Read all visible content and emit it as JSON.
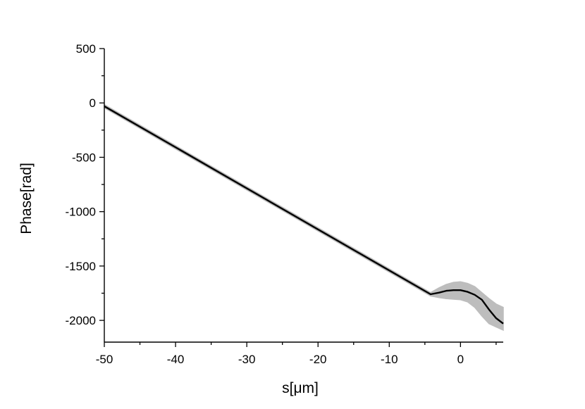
{
  "chart_data": {
    "type": "line",
    "title": "",
    "xlabel": "s[μm]",
    "ylabel": "Phase[rad]",
    "xlim": [
      -50,
      6
    ],
    "ylim": [
      -2200,
      500
    ],
    "x_ticks": [
      -50,
      -40,
      -30,
      -20,
      -10,
      0
    ],
    "x_tick_labels": [
      "-50",
      "-40",
      "-30",
      "-20",
      "-10",
      "0"
    ],
    "y_ticks": [
      500,
      0,
      -500,
      -1000,
      -1500,
      -2000
    ],
    "y_tick_labels": [
      "500",
      "0",
      "-500",
      "-1000",
      "-1500",
      "-2000"
    ],
    "grid": false,
    "legend": "none",
    "series": [
      {
        "role": "mean",
        "color": "#000000",
        "points": [
          [
            -50,
            -30
          ],
          [
            -4.2,
            -1760
          ],
          [
            -3,
            -1745
          ],
          [
            -2,
            -1728
          ],
          [
            -1,
            -1722
          ],
          [
            0,
            -1722
          ],
          [
            1,
            -1738
          ],
          [
            2,
            -1765
          ],
          [
            3,
            -1810
          ],
          [
            4,
            -1900
          ],
          [
            5,
            -1980
          ],
          [
            6,
            -2030
          ]
        ]
      },
      {
        "role": "spread-band",
        "color": "#bdbdbd",
        "upper": [
          [
            -50,
            -15
          ],
          [
            -4.2,
            -1745
          ],
          [
            -3,
            -1700
          ],
          [
            -2,
            -1670
          ],
          [
            -1,
            -1650
          ],
          [
            0,
            -1645
          ],
          [
            1,
            -1660
          ],
          [
            2,
            -1690
          ],
          [
            3,
            -1745
          ],
          [
            4,
            -1800
          ],
          [
            5,
            -1850
          ],
          [
            6,
            -1880
          ]
        ],
        "lower": [
          [
            -50,
            -45
          ],
          [
            -4.2,
            -1775
          ],
          [
            -3,
            -1790
          ],
          [
            -2,
            -1800
          ],
          [
            -1,
            -1805
          ],
          [
            0,
            -1810
          ],
          [
            1,
            -1830
          ],
          [
            2,
            -1880
          ],
          [
            3,
            -1960
          ],
          [
            4,
            -2030
          ],
          [
            5,
            -2060
          ],
          [
            6,
            -2090
          ]
        ]
      }
    ]
  }
}
